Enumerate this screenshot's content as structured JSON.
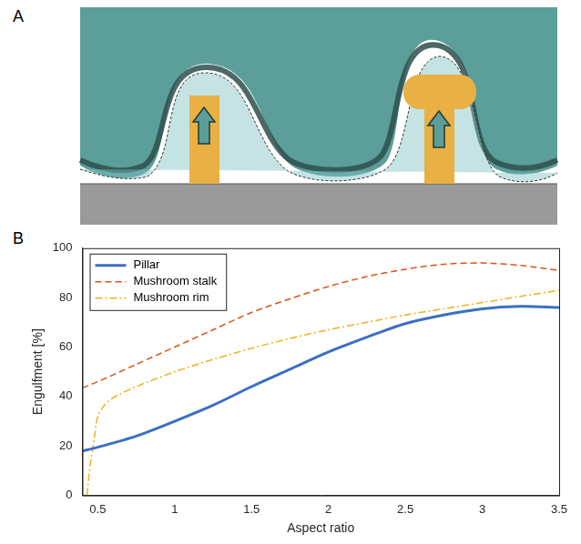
{
  "diagram": {
    "label": "A"
  },
  "chart_data": {
    "type": "line",
    "label": "B",
    "x_label": "Aspect ratio",
    "y_label": "Engulfment [%]",
    "series": [
      {
        "name": "Pillar",
        "color": "#3b6fc2",
        "line_style": "solid",
        "x": [
          0.4,
          0.5,
          0.75,
          1,
          1.25,
          1.5,
          1.75,
          2,
          2.25,
          2.5,
          2.75,
          3,
          3.25,
          3.5
        ],
        "values": [
          18,
          19.5,
          24,
          30,
          36.5,
          44,
          51,
          58,
          64,
          69.5,
          73,
          75.5,
          76.5,
          76
        ]
      },
      {
        "name": "Mushroom stalk",
        "color": "#d95319",
        "line_style": "dashed",
        "x": [
          0.4,
          0.5,
          0.75,
          1,
          1.25,
          1.5,
          1.75,
          2,
          2.25,
          2.5,
          2.75,
          3,
          3.25,
          3.5
        ],
        "values": [
          43.5,
          46,
          53,
          60,
          67,
          74,
          79.5,
          84.5,
          88.5,
          91.5,
          93.5,
          94,
          93,
          91
        ]
      },
      {
        "name": "Mushroom rim",
        "color": "#edb120",
        "line_style": "dashdot",
        "x": [
          0.43,
          0.45,
          0.48,
          0.5,
          0.55,
          0.6,
          0.75,
          1,
          1.25,
          1.5,
          1.75,
          2,
          2.25,
          2.5,
          2.75,
          3,
          3.25,
          3.5
        ],
        "values": [
          0,
          12,
          24,
          32,
          37,
          39.5,
          44,
          50,
          55,
          59.5,
          63.5,
          67,
          70,
          73,
          75.5,
          78,
          80.5,
          83
        ]
      }
    ],
    "xlim": [
      0.4,
      3.5
    ],
    "xticks": [
      0.5,
      1,
      1.5,
      2,
      2.5,
      3,
      3.5
    ],
    "ylim": [
      0,
      100
    ],
    "yticks": [
      0,
      20,
      40,
      60,
      80,
      100
    ],
    "grid": false,
    "legend": "upper left"
  }
}
